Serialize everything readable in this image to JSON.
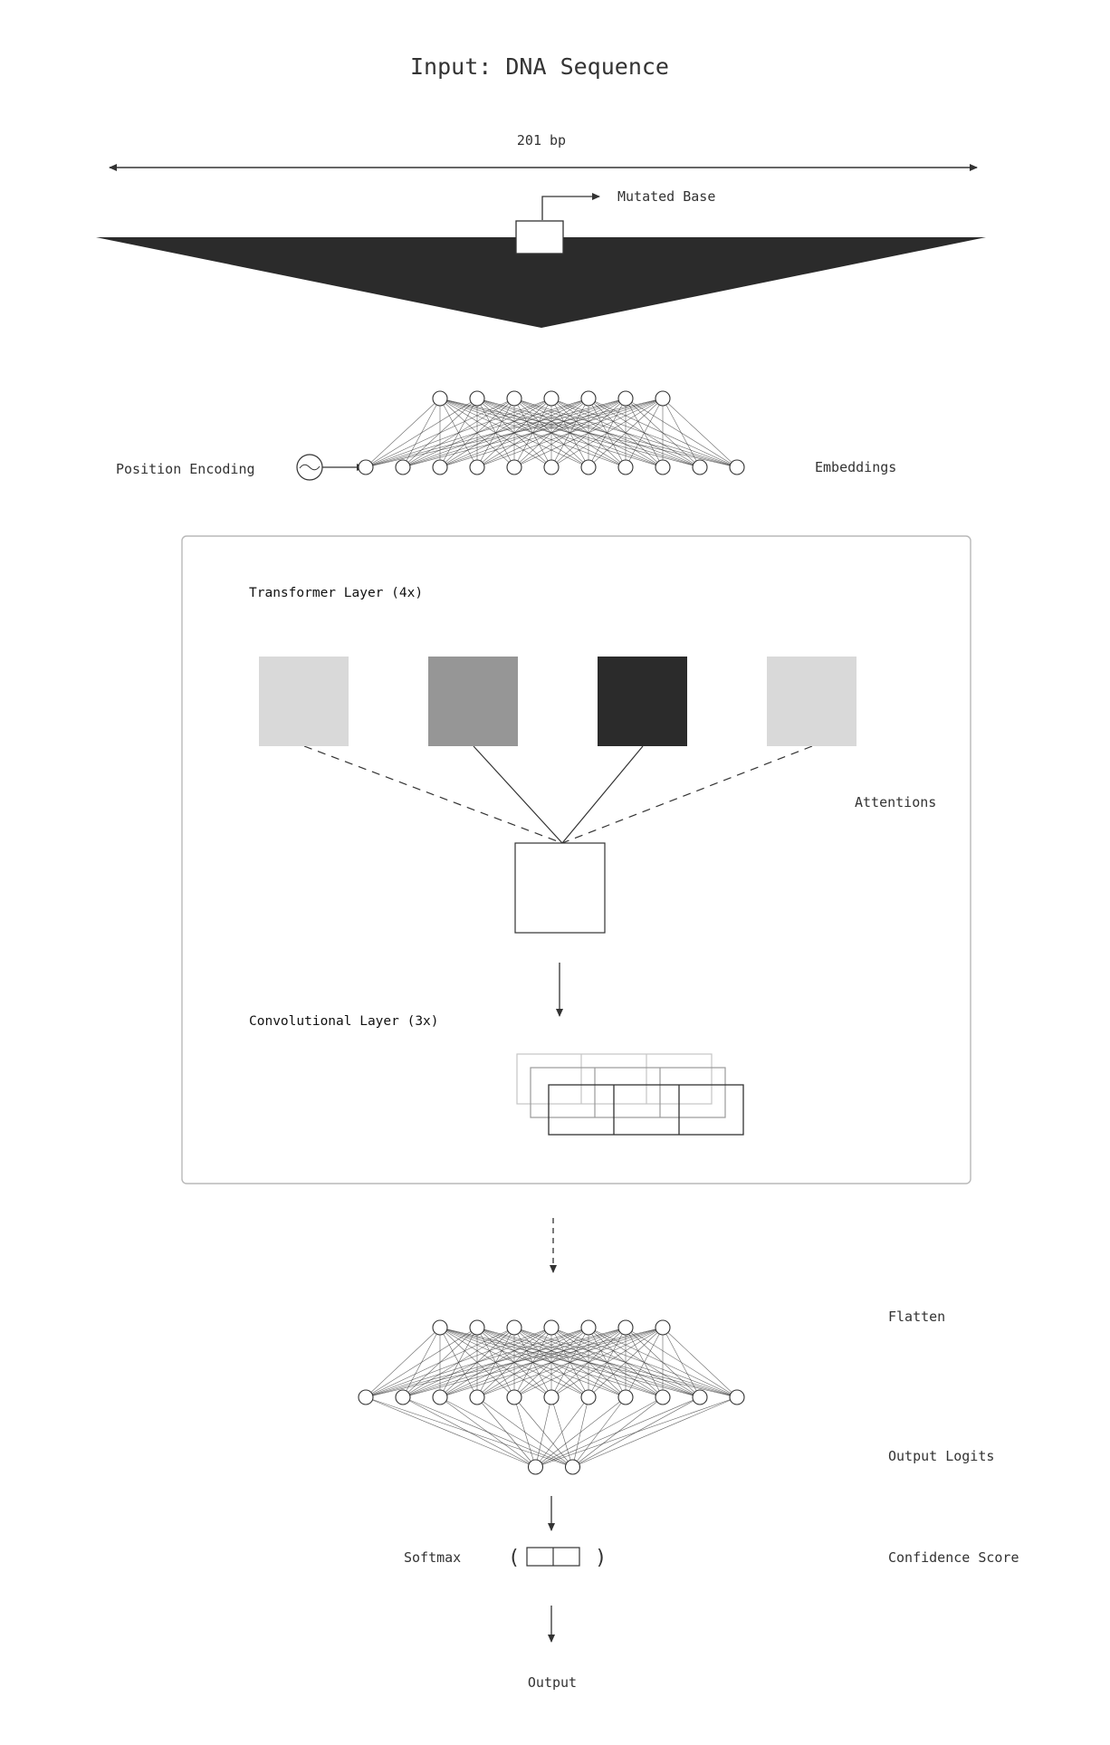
{
  "title": "Input: DNA Sequence",
  "sequence": {
    "length_label": "201 bp",
    "mutated_label": "Mutated Base"
  },
  "embedding": {
    "left_label": "Position Encoding",
    "right_label": "Embeddings",
    "top_nodes": 7,
    "bottom_nodes": 11
  },
  "transformer_block": {
    "transformer_label": "Transformer Layer (4x)",
    "attention_label": "Attentions",
    "attention_heads": [
      {
        "name": "head-1",
        "color": "#d9d9d9",
        "link": "dashed"
      },
      {
        "name": "head-2",
        "color": "#969696",
        "link": "solid"
      },
      {
        "name": "head-3",
        "color": "#2b2b2b",
        "link": "solid"
      },
      {
        "name": "head-4",
        "color": "#d9d9d9",
        "link": "dashed"
      }
    ],
    "conv_label": "Convolutional Layer (3x)"
  },
  "head": {
    "flatten_label": "Flatten",
    "logits_label": "Output Logits",
    "softmax_label": "Softmax",
    "confidence_label": "Confidence Score",
    "output_label": "Output",
    "top_nodes": 7,
    "middle_nodes": 11,
    "logit_nodes": 2
  },
  "colors": {
    "stroke": "#333333",
    "dark_fill": "#2b2b2b",
    "panel_border": "#b8b8b8"
  }
}
